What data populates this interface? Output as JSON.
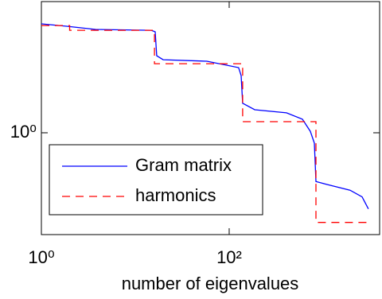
{
  "chart_data": {
    "type": "line",
    "xlabel": "number of eigenvalues",
    "xscale": "log",
    "yscale": "log",
    "xlim": [
      1,
      4000
    ],
    "ylim": [
      0.14,
      12.6
    ],
    "xticks": [
      {
        "value": 1,
        "label": "10⁰"
      },
      {
        "value": 100,
        "label": "10²"
      }
    ],
    "yticks": [
      {
        "value": 1,
        "label": "10⁰"
      }
    ],
    "legend": "lower left",
    "series": [
      {
        "name": "Gram matrix",
        "color": "#0000ff",
        "style": "solid",
        "x": [
          1,
          1.9,
          3.77,
          14.8,
          16.3,
          16.9,
          19.8,
          57.9,
          126,
          134,
          139,
          187,
          408,
          602,
          731,
          807,
          839,
          1081,
          1941,
          2602,
          3040
        ],
        "values": [
          8.19,
          7.82,
          7.36,
          7.24,
          7.03,
          4.43,
          4.1,
          3.98,
          3.52,
          3.02,
          1.77,
          1.56,
          1.47,
          1.3,
          1.03,
          0.82,
          0.39,
          0.37,
          0.33,
          0.29,
          0.23
        ]
      },
      {
        "name": "harmonics",
        "color": "#ff0000",
        "style": "dashed",
        "x": [
          1,
          2,
          2,
          16,
          16,
          139,
          139,
          839,
          839,
          3040
        ],
        "values": [
          7.94,
          7.94,
          7.24,
          7.24,
          3.8,
          3.8,
          1.24,
          1.24,
          0.177,
          0.177
        ]
      }
    ]
  }
}
